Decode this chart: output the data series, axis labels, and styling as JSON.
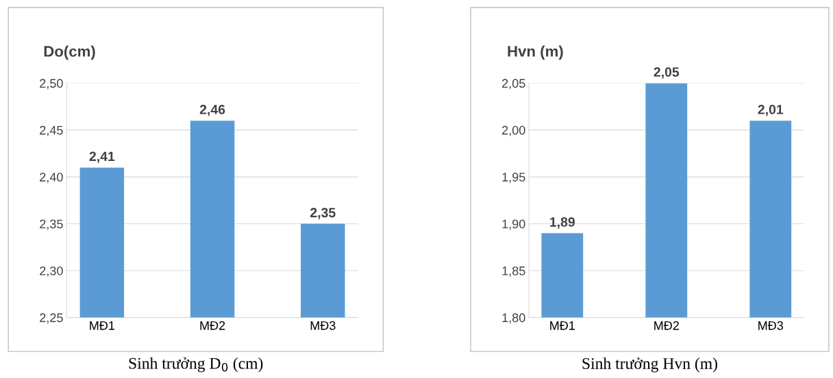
{
  "chart_data": [
    {
      "type": "bar",
      "ylabel": "Do(cm)",
      "categories": [
        "MĐ1",
        "MĐ2",
        "MĐ3"
      ],
      "values": [
        2.41,
        2.46,
        2.35
      ],
      "value_labels": [
        "2,41",
        "2,46",
        "2,35"
      ],
      "color": "#5b9bd5",
      "ylim": [
        2.25,
        2.5
      ],
      "yticks": [
        {
          "value": 2.25,
          "label": "2,25"
        },
        {
          "value": 2.3,
          "label": "2,30"
        },
        {
          "value": 2.35,
          "label": "2,35"
        },
        {
          "value": 2.4,
          "label": "2,40"
        },
        {
          "value": 2.45,
          "label": "2,45"
        },
        {
          "value": 2.5,
          "label": "2,50"
        }
      ],
      "grid": "y",
      "annotations": [
        "Sinh trưởng D$_{0}$ (cm)"
      ]
    },
    {
      "type": "bar",
      "ylabel": "Hvn (m)",
      "categories": [
        "MĐ1",
        "MĐ2",
        "MĐ3"
      ],
      "values": [
        1.89,
        2.05,
        2.01
      ],
      "value_labels": [
        "1,89",
        "2,05",
        "2,01"
      ],
      "color": "#5b9bd5",
      "ylim": [
        1.8,
        2.05
      ],
      "yticks": [
        {
          "value": 1.8,
          "label": "1,80"
        },
        {
          "value": 1.85,
          "label": "1,85"
        },
        {
          "value": 1.9,
          "label": "1,90"
        },
        {
          "value": 1.95,
          "label": "1,95"
        },
        {
          "value": 2.0,
          "label": "2,00"
        },
        {
          "value": 2.05,
          "label": "2,05"
        }
      ],
      "grid": "y",
      "annotations": [
        "Sinh trưởng Hvn (m)"
      ]
    }
  ]
}
